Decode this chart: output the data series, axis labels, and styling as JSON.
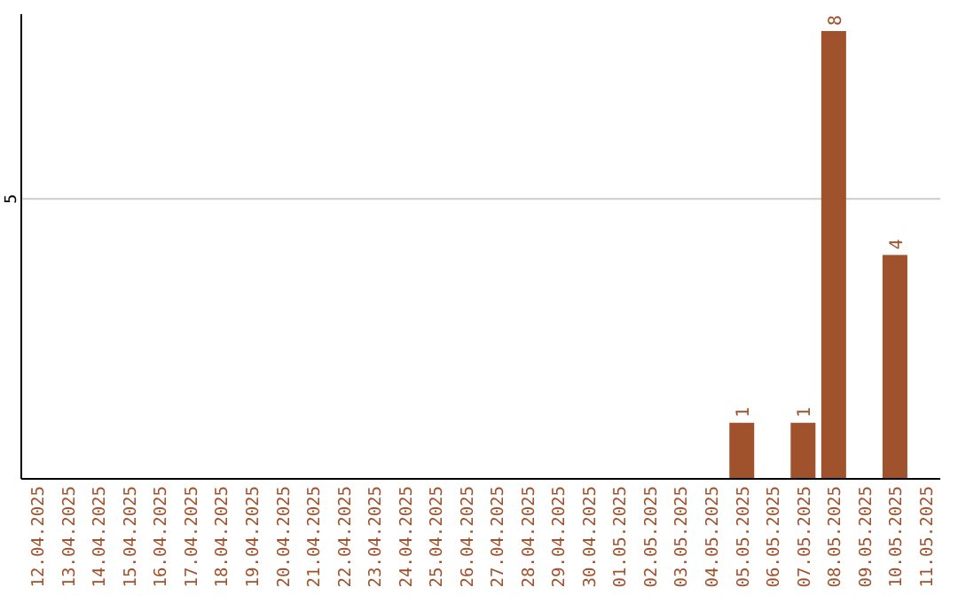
{
  "chart_data": {
    "type": "bar",
    "categories": [
      "12.04.2025",
      "13.04.2025",
      "14.04.2025",
      "15.04.2025",
      "16.04.2025",
      "17.04.2025",
      "18.04.2025",
      "19.04.2025",
      "20.04.2025",
      "21.04.2025",
      "22.04.2025",
      "23.04.2025",
      "24.04.2025",
      "25.04.2025",
      "26.04.2025",
      "27.04.2025",
      "28.04.2025",
      "29.04.2025",
      "30.04.2025",
      "01.05.2025",
      "02.05.2025",
      "03.05.2025",
      "04.05.2025",
      "05.05.2025",
      "06.05.2025",
      "07.05.2025",
      "08.05.2025",
      "09.05.2025",
      "10.05.2025",
      "11.05.2025"
    ],
    "values": [
      null,
      null,
      null,
      null,
      null,
      null,
      null,
      null,
      null,
      null,
      null,
      null,
      null,
      null,
      null,
      null,
      null,
      null,
      null,
      null,
      null,
      null,
      null,
      1,
      null,
      1,
      8,
      null,
      4,
      null
    ],
    "data_labels": true,
    "color": "#a0522d",
    "ylim": [
      0,
      8.3
    ],
    "yticks": [
      5
    ],
    "grid": "y"
  }
}
